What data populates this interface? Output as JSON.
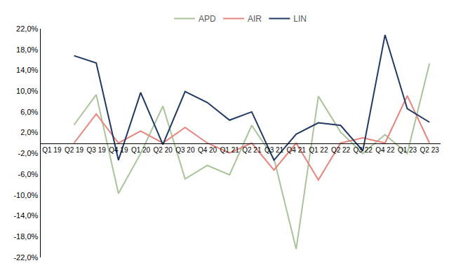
{
  "chart_data": {
    "type": "line",
    "categories": [
      "Q1 19",
      "Q2 19",
      "Q3 19",
      "Q4 19",
      "Q1 20",
      "Q2 20",
      "Q3 20",
      "Q4 20",
      "Q1 21",
      "Q2 21",
      "Q3 21",
      "Q4 21",
      "Q1 22",
      "Q2 22",
      "Q3 22",
      "Q4 22",
      "Q1 23",
      "Q2 23"
    ],
    "series": [
      {
        "name": "APD",
        "color": "#a9c49a",
        "values": [
          null,
          3.5,
          9.3,
          -9.7,
          -2.0,
          7.1,
          -6.9,
          -4.3,
          -6.1,
          3.4,
          -3.0,
          -20.4,
          9.0,
          2.1,
          -2.0,
          1.6,
          -2.0,
          15.3
        ]
      },
      {
        "name": "AIR",
        "color": "#e8847c",
        "values": [
          null,
          0.0,
          5.6,
          0.0,
          2.3,
          0.0,
          3.0,
          0.0,
          -1.9,
          0.0,
          -5.2,
          0.0,
          -7.1,
          0.0,
          1.0,
          0.0,
          9.1,
          0.0
        ]
      },
      {
        "name": "LIN",
        "color": "#1f3864",
        "values": [
          null,
          16.8,
          15.4,
          -3.3,
          9.7,
          -0.3,
          9.9,
          7.8,
          4.4,
          6.0,
          -3.3,
          1.7,
          3.9,
          3.4,
          -1.5,
          20.8,
          6.6,
          4.0
        ]
      }
    ],
    "ylim": [
      -22,
      22
    ],
    "yticks": [
      {
        "value": -22,
        "label": "-22,0%"
      },
      {
        "value": -18,
        "label": "-18,0%"
      },
      {
        "value": -14,
        "label": "-14,0%"
      },
      {
        "value": -10,
        "label": "-10,0%"
      },
      {
        "value": -6,
        "label": "-6,0%"
      },
      {
        "value": -2,
        "label": "-2,0%"
      },
      {
        "value": 2,
        "label": "2,0%"
      },
      {
        "value": 6,
        "label": "6,0%"
      },
      {
        "value": 10,
        "label": "10,0%"
      },
      {
        "value": 14,
        "label": "14,0%"
      },
      {
        "value": 18,
        "label": "18,0%"
      },
      {
        "value": 22,
        "label": "22,0%"
      }
    ],
    "grid": false,
    "legend": "top"
  }
}
